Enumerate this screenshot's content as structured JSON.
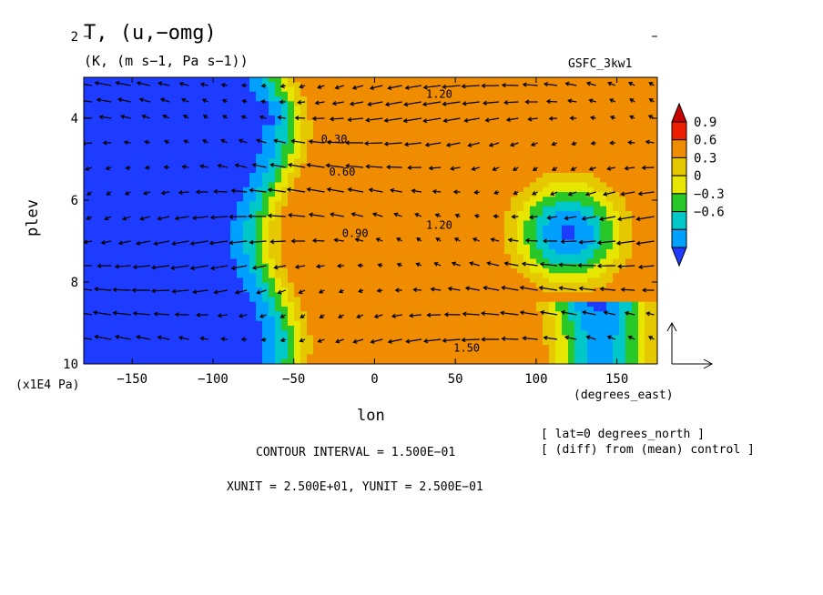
{
  "figure": {
    "title": "T, (u,−omg)",
    "subtitle": "(K, (m s−1, Pa s−1))",
    "model": "GSFC_3kw1",
    "xunit_note": "(x1E4 Pa)",
    "xaxis_unit": "(degrees_east)",
    "xlabel": "lon",
    "ylabel": "plev",
    "info_lat": "[ lat=0 degrees_north ]",
    "info_diff": "[ (diff) from (mean) control ]",
    "contour_interval": "CONTOUR INTERVAL = 1.500E−01",
    "vector_units": "XUNIT = 2.500E+01, YUNIT = 2.500E−01"
  },
  "chart_data": {
    "type": "heatmap",
    "title": "T, (u,−omg)",
    "xlabel": "lon",
    "ylabel": "plev",
    "xlim": [
      -180,
      175
    ],
    "ylim": [
      10,
      3
    ],
    "xticks": [
      -150,
      -100,
      -50,
      0,
      50,
      100,
      150
    ],
    "xtick_labels": [
      "−150",
      "−100",
      "−50",
      "0",
      "50",
      "100",
      "150"
    ],
    "yticks": [
      2,
      4,
      6,
      8,
      10
    ],
    "ytick_labels": [
      "2",
      "4",
      "6",
      "8",
      "10"
    ],
    "colorbar": {
      "levels": [
        0.9,
        0.6,
        0.3,
        0,
        -0.3,
        -0.6
      ],
      "labels": [
        "0.9",
        "0.6",
        "0.3",
        "0",
        "−0.3",
        "−0.6"
      ],
      "colors": [
        "#c80000",
        "#ee1e00",
        "#f08c00",
        "#e6c800",
        "#e6e600",
        "#28c828",
        "#00c8c8",
        "#00a0ff",
        "#1e3cff"
      ]
    },
    "contour_labels": [
      {
        "text": "1.20",
        "lon": 40,
        "plev": 6.7
      },
      {
        "text": "1.50",
        "lon": 57,
        "plev": 9.7
      },
      {
        "text": "0.90",
        "lon": -12,
        "plev": 6.9
      },
      {
        "text": "0.60",
        "lon": -20,
        "plev": 5.4
      },
      {
        "text": "0.30",
        "lon": -25,
        "plev": 4.6
      },
      {
        "text": "1.20",
        "lon": 40,
        "plev": 3.5
      }
    ],
    "grid": false
  }
}
